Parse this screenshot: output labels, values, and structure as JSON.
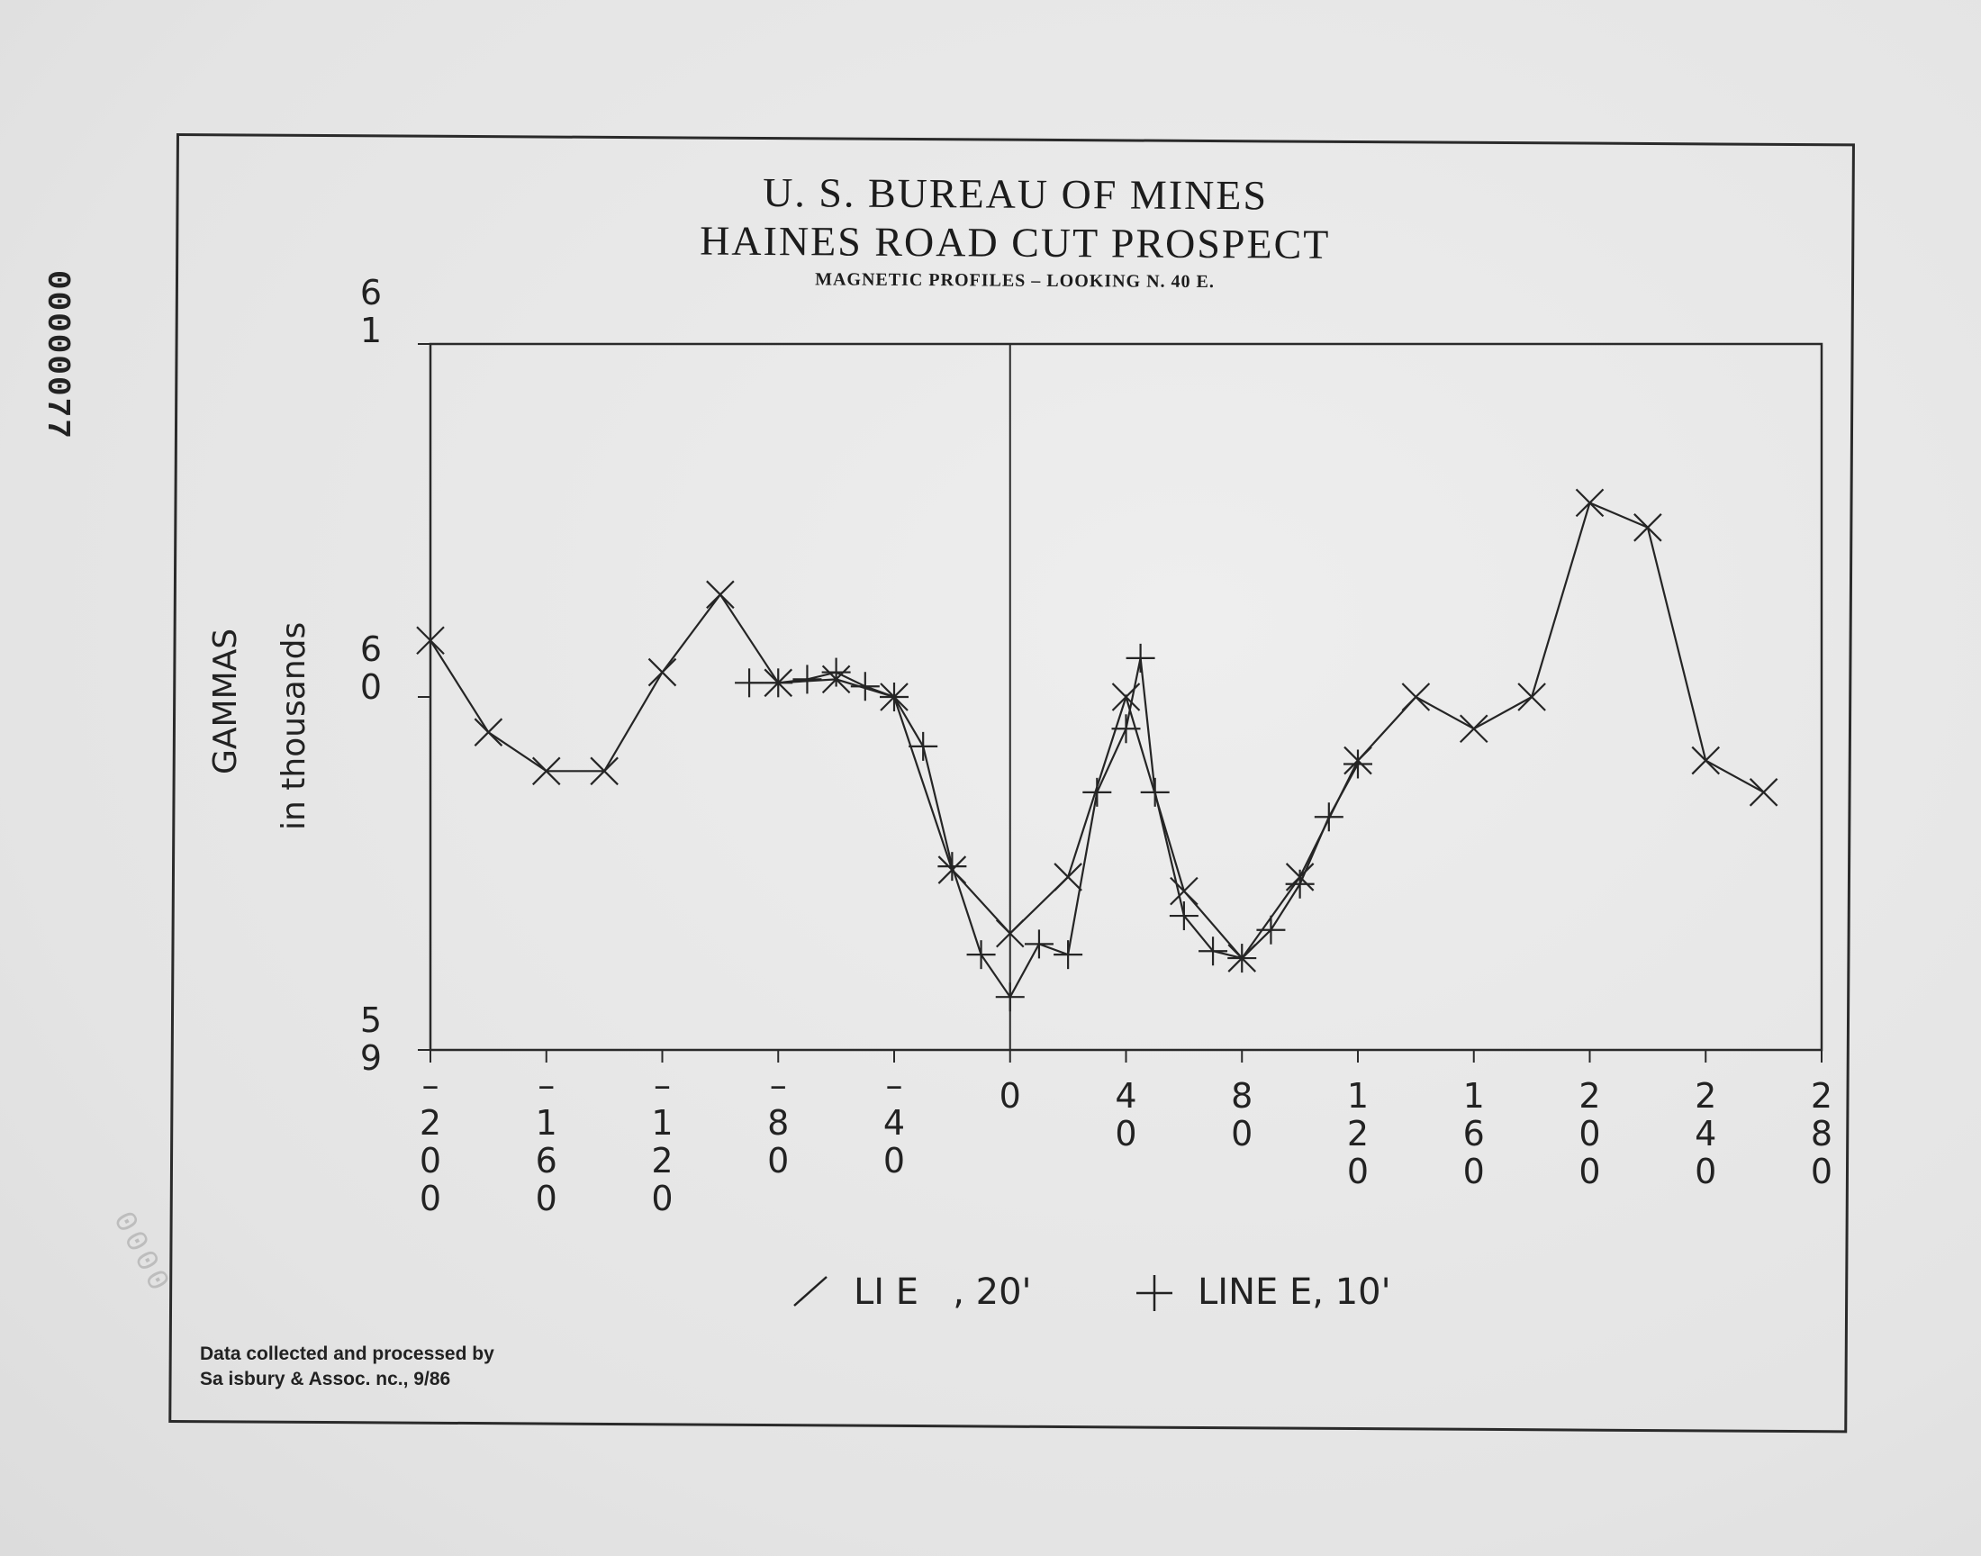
{
  "document": {
    "stamp_vertical": "00000077",
    "stamp_faint": "0000",
    "title_line1": "U. S. BUREAU OF MINES",
    "title_line2": "HAINES ROAD CUT PROSPECT",
    "title_line3": "MAGNETIC PROFILES – LOOKING N. 40 E.",
    "credit_line1": "Data collected and processed by",
    "credit_line2": "Sa isbury & Assoc. nc., 9/86"
  },
  "chart_data": {
    "type": "line",
    "title": "",
    "ylabel_line1": "GAMMAS",
    "ylabel_line2": "in thousands",
    "ylim": [
      59,
      61
    ],
    "xlim": [
      -200,
      280
    ],
    "ytick_labels": [
      {
        "value": 61,
        "text": "61",
        "digits": [
          "6",
          "1"
        ]
      },
      {
        "value": 60,
        "text": "60",
        "digits": [
          "6",
          "0"
        ]
      },
      {
        "value": 59,
        "text": "59",
        "digits": [
          "5",
          "9"
        ]
      }
    ],
    "xticks": [
      -200,
      -160,
      -120,
      -80,
      -40,
      0,
      40,
      80,
      120,
      160,
      200,
      240,
      280
    ],
    "xtick_labels": [
      {
        "value": -200,
        "text": "-200",
        "lines": [
          "–",
          "2",
          "0",
          "0"
        ]
      },
      {
        "value": -160,
        "text": "-160",
        "lines": [
          "–",
          "1",
          "6",
          "0"
        ]
      },
      {
        "value": -120,
        "text": "-120",
        "lines": [
          "–",
          "1",
          "2",
          "0"
        ]
      },
      {
        "value": -80,
        "text": "-80",
        "lines": [
          "–",
          "8",
          "0"
        ]
      },
      {
        "value": -40,
        "text": "-40",
        "lines": [
          "–",
          "4",
          "0"
        ]
      },
      {
        "value": 0,
        "text": "0",
        "lines": [
          "0"
        ]
      },
      {
        "value": 40,
        "text": "40",
        "lines": [
          "4",
          "0"
        ]
      },
      {
        "value": 80,
        "text": "80",
        "lines": [
          "8",
          "0"
        ]
      },
      {
        "value": 120,
        "text": "120",
        "lines": [
          "1",
          "2",
          "0"
        ]
      },
      {
        "value": 160,
        "text": "160",
        "lines": [
          "1",
          "6",
          "0"
        ]
      },
      {
        "value": 200,
        "text": "200",
        "lines": [
          "2",
          "0",
          "0"
        ]
      },
      {
        "value": 240,
        "text": "240",
        "lines": [
          "2",
          "4",
          "0"
        ]
      },
      {
        "value": 280,
        "text": "280",
        "lines": [
          "2",
          "8",
          "0"
        ]
      }
    ],
    "grid": false,
    "legend_position": "bottom",
    "legend": [
      {
        "symbol": "/",
        "text": "LI E   , 20'"
      },
      {
        "symbol": "+",
        "text": "LINE E, 10'"
      }
    ],
    "series": [
      {
        "name": "LI E   , 20'",
        "marker": "x",
        "points": [
          [
            -200,
            60.16
          ],
          [
            -180,
            59.9
          ],
          [
            -160,
            59.79
          ],
          [
            -140,
            59.79
          ],
          [
            -120,
            60.07
          ],
          [
            -100,
            60.29
          ],
          [
            -80,
            60.04
          ],
          [
            -60,
            60.05
          ],
          [
            -40,
            60.0
          ],
          [
            -20,
            59.51
          ],
          [
            0,
            59.33
          ],
          [
            20,
            59.49
          ],
          [
            40,
            60.0
          ],
          [
            60,
            59.45
          ],
          [
            80,
            59.26
          ],
          [
            100,
            59.49
          ],
          [
            120,
            59.82
          ],
          [
            140,
            60.0
          ],
          [
            160,
            59.91
          ],
          [
            180,
            60.0
          ],
          [
            200,
            60.55
          ],
          [
            220,
            60.48
          ],
          [
            240,
            59.82
          ],
          [
            260,
            59.73
          ]
        ]
      },
      {
        "name": "LINE E, 10'",
        "marker": "+",
        "points": [
          [
            -90,
            60.04
          ],
          [
            -80,
            60.04
          ],
          [
            -70,
            60.05
          ],
          [
            -60,
            60.07
          ],
          [
            -50,
            60.03
          ],
          [
            -40,
            60.0
          ],
          [
            -30,
            59.86
          ],
          [
            -20,
            59.52
          ],
          [
            -10,
            59.27
          ],
          [
            0,
            59.15
          ],
          [
            10,
            59.3
          ],
          [
            20,
            59.27
          ],
          [
            30,
            59.73
          ],
          [
            40,
            59.91
          ],
          [
            45,
            60.11
          ],
          [
            50,
            59.73
          ],
          [
            60,
            59.38
          ],
          [
            70,
            59.28
          ],
          [
            80,
            59.26
          ],
          [
            90,
            59.34
          ],
          [
            100,
            59.47
          ],
          [
            110,
            59.66
          ],
          [
            120,
            59.81
          ]
        ]
      }
    ],
    "reference_line_x": 0
  }
}
